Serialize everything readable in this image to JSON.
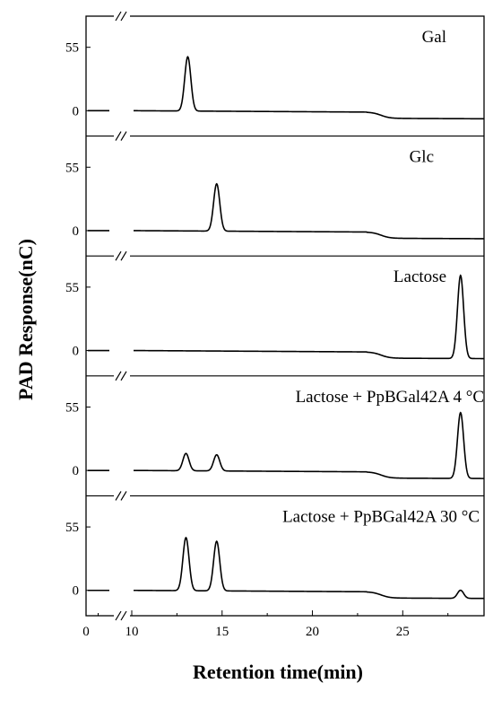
{
  "chart_data": {
    "type": "line",
    "xlabel": "Retention time(min)",
    "ylabel": "PAD Response(nC)",
    "x_ticks": [
      "0",
      "10",
      "15",
      "20",
      "25"
    ],
    "y_ticks": [
      "0",
      "55"
    ],
    "x_break": {
      "segment1": [
        0,
        10
      ],
      "segment2": [
        10,
        29.5
      ]
    },
    "ylim": [
      -22,
      82
    ],
    "panels": [
      {
        "label": "Gal",
        "baseline_drift": true,
        "peaks": [
          {
            "x": 13.1,
            "height": 47
          }
        ]
      },
      {
        "label": "Glc",
        "baseline_drift": true,
        "peaks": [
          {
            "x": 14.7,
            "height": 41
          }
        ]
      },
      {
        "label": "Lactose",
        "baseline_drift": true,
        "peaks": [
          {
            "x": 28.2,
            "height": 72
          }
        ]
      },
      {
        "label": "Lactose + PpBGal42A  4 °C",
        "baseline_drift": true,
        "peaks": [
          {
            "x": 13.0,
            "height": 15
          },
          {
            "x": 14.7,
            "height": 14
          },
          {
            "x": 28.2,
            "height": 57
          }
        ]
      },
      {
        "label": "Lactose + PpBGal42A  30 °C",
        "baseline_drift": true,
        "peaks": [
          {
            "x": 13.0,
            "height": 46
          },
          {
            "x": 14.7,
            "height": 43
          },
          {
            "x": 28.2,
            "height": 7
          }
        ]
      }
    ]
  }
}
